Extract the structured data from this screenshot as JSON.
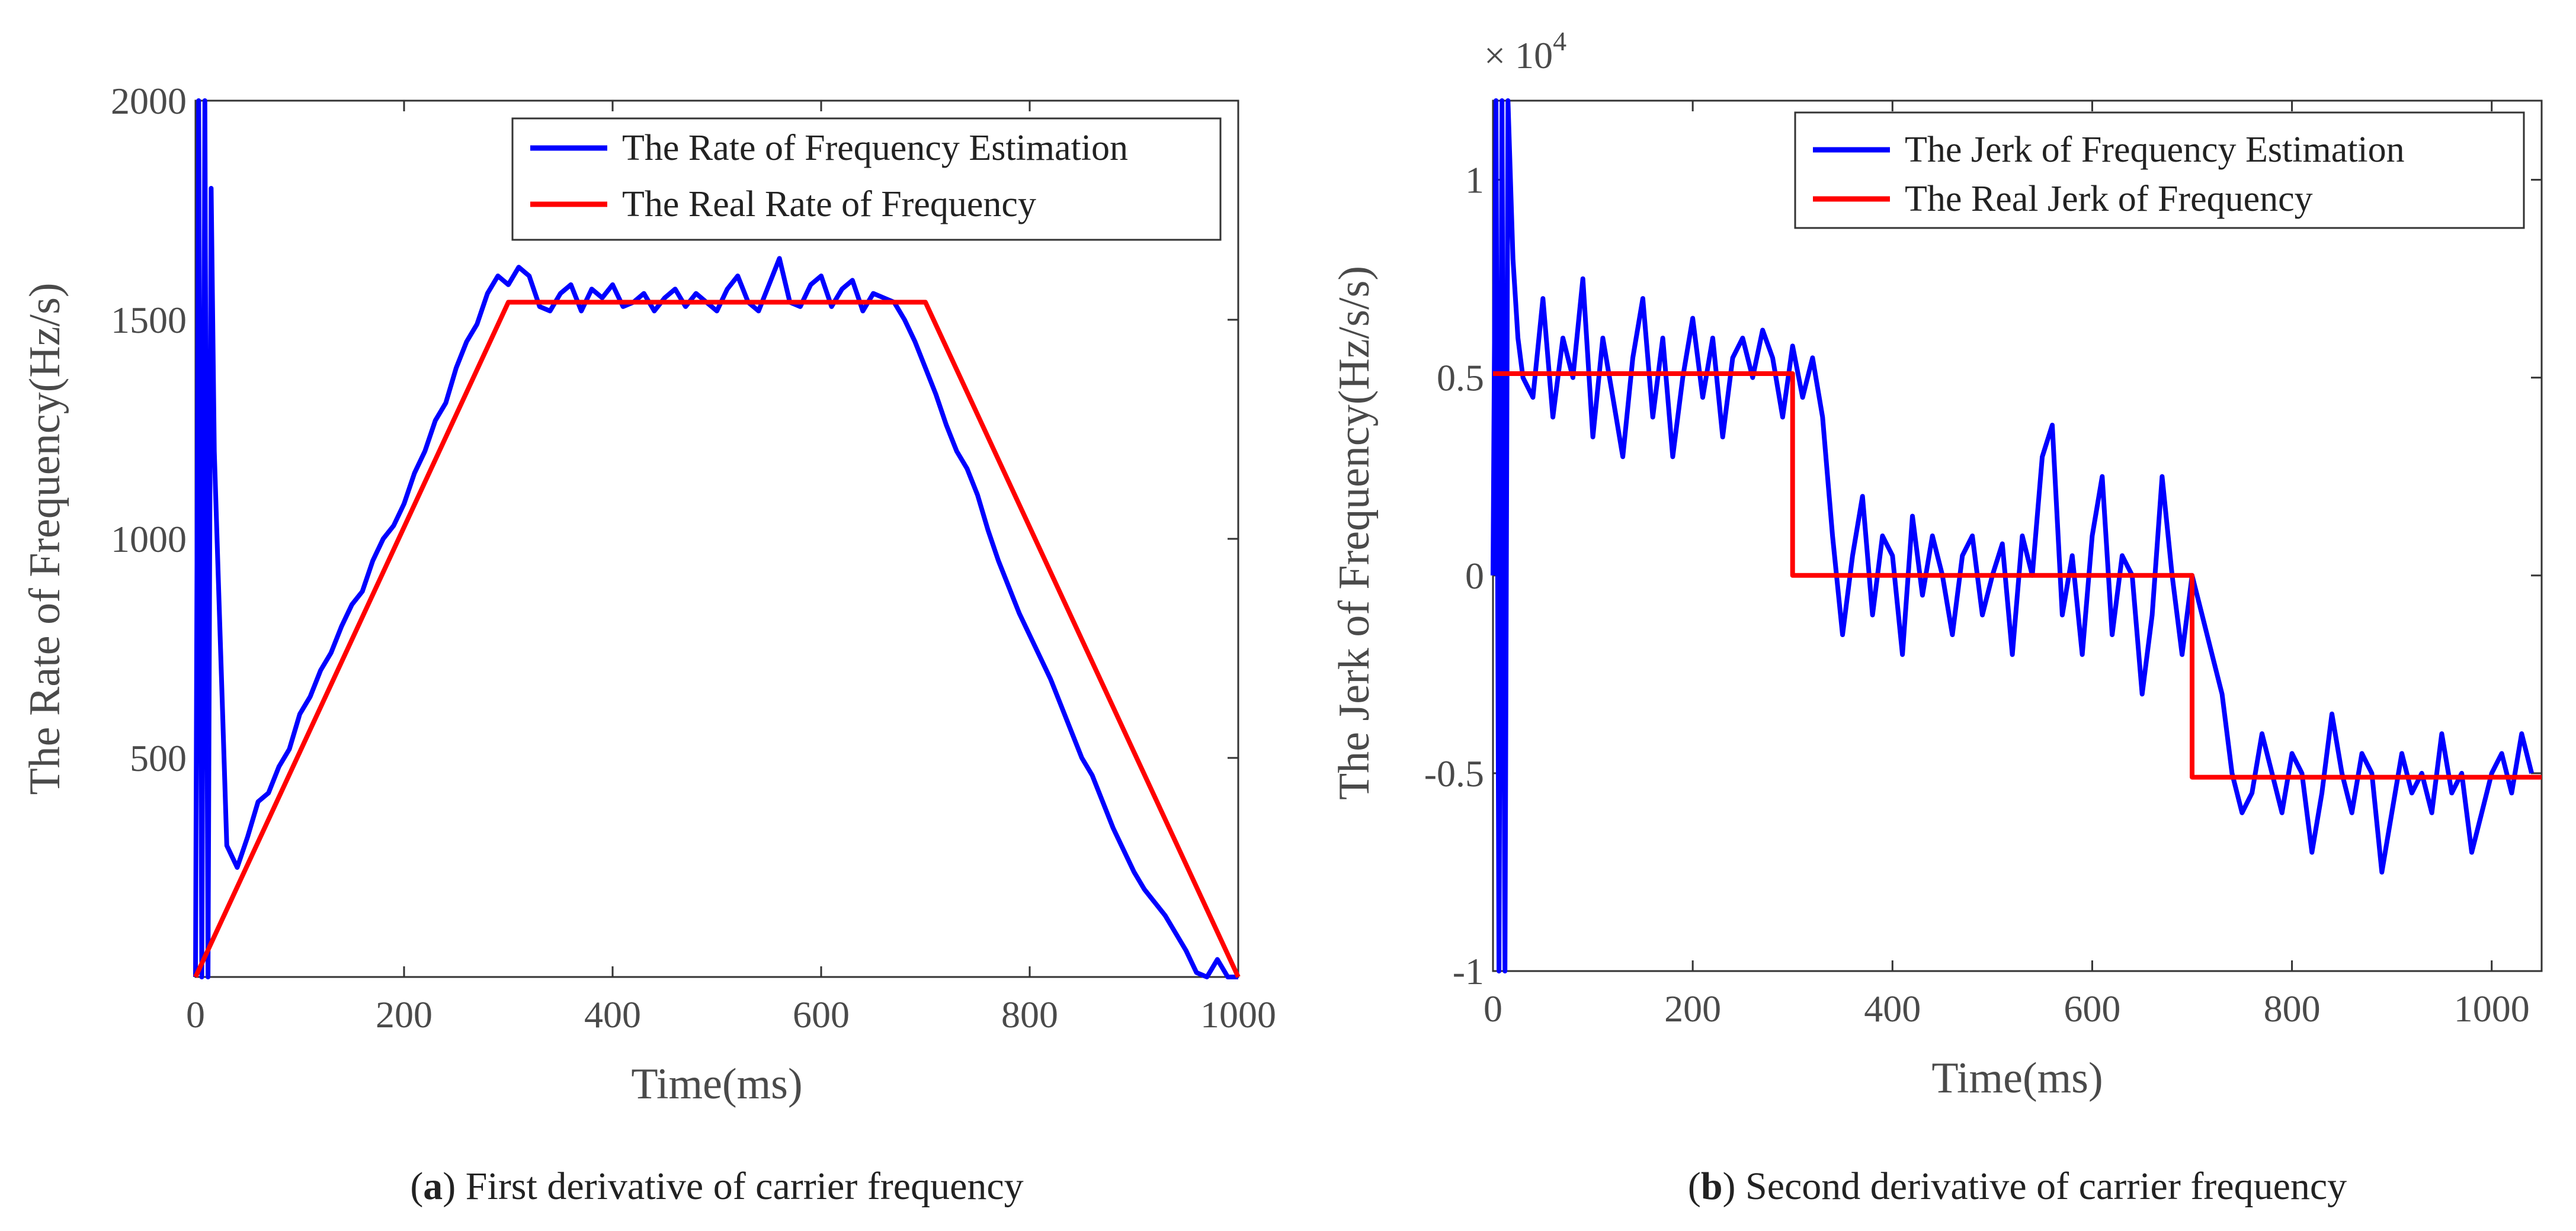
{
  "chart_data": [
    {
      "type": "line",
      "id": "a",
      "caption_letter": "a",
      "caption_text": "First derivative of carrier frequency",
      "caption_open": "(",
      "caption_close": ") ",
      "xlabel": "Time(ms)",
      "ylabel": "The Rate of Frequency(Hz/s)",
      "xlim": [
        0,
        1000
      ],
      "ylim": [
        0,
        2000
      ],
      "xticks": [
        0,
        200,
        400,
        600,
        800,
        1000
      ],
      "yticks": [
        500,
        1000,
        1500,
        2000
      ],
      "legend_position": "top-right",
      "series": [
        {
          "name": "The Rate of Frequency Estimation",
          "color": "#0000ff",
          "x": [
            0,
            3,
            6,
            9,
            12,
            15,
            18,
            22,
            26,
            30,
            40,
            50,
            60,
            70,
            80,
            90,
            100,
            110,
            120,
            130,
            140,
            150,
            160,
            170,
            180,
            190,
            200,
            210,
            220,
            230,
            240,
            250,
            260,
            270,
            280,
            290,
            300,
            310,
            320,
            330,
            340,
            350,
            360,
            370,
            380,
            390,
            400,
            410,
            420,
            430,
            440,
            450,
            460,
            470,
            480,
            490,
            500,
            510,
            520,
            530,
            540,
            550,
            560,
            570,
            580,
            590,
            600,
            610,
            620,
            630,
            640,
            650,
            660,
            670,
            680,
            690,
            700,
            710,
            720,
            730,
            740,
            750,
            760,
            770,
            780,
            790,
            800,
            810,
            820,
            830,
            840,
            850,
            860,
            870,
            880,
            890,
            900,
            910,
            920,
            930,
            940,
            950,
            960,
            970,
            980,
            990,
            1000
          ],
          "values": [
            0,
            2000,
            -300,
            2000,
            -200,
            1800,
            1200,
            900,
            600,
            300,
            250,
            320,
            400,
            420,
            480,
            520,
            600,
            640,
            700,
            740,
            800,
            850,
            880,
            950,
            1000,
            1030,
            1080,
            1150,
            1200,
            1270,
            1310,
            1390,
            1450,
            1490,
            1560,
            1600,
            1580,
            1620,
            1600,
            1530,
            1520,
            1560,
            1580,
            1520,
            1570,
            1550,
            1580,
            1530,
            1540,
            1560,
            1520,
            1550,
            1570,
            1530,
            1560,
            1540,
            1520,
            1570,
            1600,
            1540,
            1520,
            1580,
            1640,
            1540,
            1530,
            1580,
            1600,
            1530,
            1570,
            1590,
            1520,
            1560,
            1550,
            1540,
            1500,
            1450,
            1390,
            1330,
            1260,
            1200,
            1160,
            1100,
            1020,
            950,
            890,
            830,
            780,
            730,
            680,
            620,
            560,
            500,
            460,
            400,
            340,
            290,
            240,
            200,
            170,
            140,
            100,
            60,
            10,
            -20,
            40,
            0,
            0
          ]
        },
        {
          "name": "The Real Rate of Frequency",
          "color": "#ff0000",
          "x": [
            0,
            300,
            700,
            1000
          ],
          "values": [
            0,
            1540,
            1540,
            0
          ]
        }
      ]
    },
    {
      "type": "line",
      "id": "b",
      "caption_letter": "b",
      "caption_text": "Second derivative of carrier frequency",
      "caption_open": "(",
      "caption_close": ") ",
      "xlabel": "Time(ms)",
      "ylabel": "The Jerk of Frequency(Hz/s/s)",
      "multiplier": "× 10",
      "multiplier_exp": "4",
      "xlim": [
        0,
        1050
      ],
      "ylim": [
        -1,
        1.2
      ],
      "xticks": [
        0,
        200,
        400,
        600,
        800,
        1000
      ],
      "yticks": [
        -1,
        -0.5,
        0,
        0.5,
        1
      ],
      "legend_position": "top-right",
      "series": [
        {
          "name": "The Jerk of Frequency Estimation",
          "color": "#0000ff",
          "x": [
            0,
            3,
            6,
            9,
            12,
            15,
            20,
            25,
            30,
            40,
            50,
            60,
            70,
            80,
            90,
            100,
            110,
            120,
            130,
            140,
            150,
            160,
            170,
            180,
            190,
            200,
            210,
            220,
            230,
            240,
            250,
            260,
            270,
            280,
            290,
            300,
            310,
            320,
            330,
            340,
            350,
            360,
            370,
            380,
            390,
            400,
            410,
            420,
            430,
            440,
            450,
            460,
            470,
            480,
            490,
            500,
            510,
            520,
            530,
            540,
            550,
            560,
            570,
            580,
            590,
            600,
            610,
            620,
            630,
            640,
            650,
            660,
            670,
            680,
            690,
            700,
            710,
            720,
            730,
            740,
            750,
            760,
            770,
            780,
            790,
            800,
            810,
            820,
            830,
            840,
            850,
            860,
            870,
            880,
            890,
            900,
            910,
            920,
            930,
            940,
            950,
            960,
            970,
            980,
            990,
            1000,
            1010,
            1020,
            1030,
            1040
          ],
          "values": [
            0,
            1.2,
            -1,
            1.2,
            -1,
            1.2,
            0.8,
            0.6,
            0.5,
            0.45,
            0.7,
            0.4,
            0.6,
            0.5,
            0.75,
            0.35,
            0.6,
            0.45,
            0.3,
            0.55,
            0.7,
            0.4,
            0.6,
            0.3,
            0.5,
            0.65,
            0.45,
            0.6,
            0.35,
            0.55,
            0.6,
            0.5,
            0.62,
            0.55,
            0.4,
            0.58,
            0.45,
            0.55,
            0.4,
            0.1,
            -0.15,
            0.05,
            0.2,
            -0.1,
            0.1,
            0.05,
            -0.2,
            0.15,
            -0.05,
            0.1,
            0.0,
            -0.15,
            0.05,
            0.1,
            -0.1,
            0.0,
            0.08,
            -0.2,
            0.1,
            0.0,
            0.3,
            0.38,
            -0.1,
            0.05,
            -0.2,
            0.1,
            0.25,
            -0.15,
            0.05,
            0.0,
            -0.3,
            -0.1,
            0.25,
            0.0,
            -0.2,
            0.0,
            -0.1,
            -0.2,
            -0.3,
            -0.5,
            -0.6,
            -0.55,
            -0.4,
            -0.5,
            -0.6,
            -0.45,
            -0.5,
            -0.7,
            -0.55,
            -0.35,
            -0.5,
            -0.6,
            -0.45,
            -0.5,
            -0.75,
            -0.6,
            -0.45,
            -0.55,
            -0.5,
            -0.6,
            -0.4,
            -0.55,
            -0.5,
            -0.7,
            -0.6,
            -0.5,
            -0.45,
            -0.55,
            -0.4,
            -0.5
          ]
        },
        {
          "name": "The Real Jerk of Frequency",
          "color": "#ff0000",
          "x": [
            0,
            300,
            300,
            700,
            700,
            1050
          ],
          "values": [
            0.51,
            0.51,
            0,
            0,
            -0.51,
            -0.51
          ]
        }
      ]
    }
  ]
}
